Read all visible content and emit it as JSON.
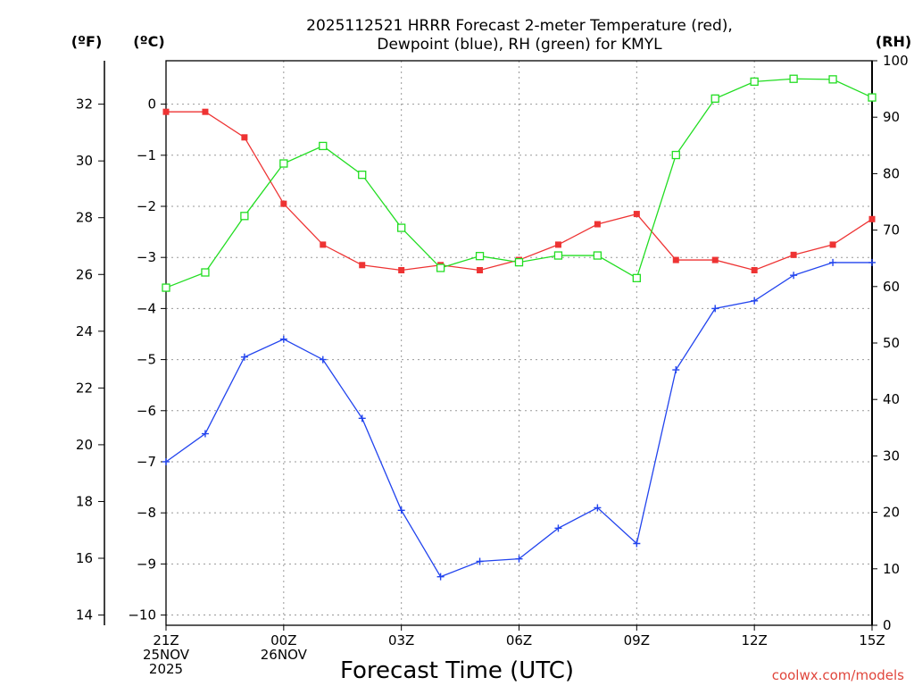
{
  "chart_data": {
    "type": "line",
    "title_lines": [
      "2025112521 HRRR Forecast 2-meter Temperature (red),",
      "Dewpoint (blue), RH (green) for KMYL"
    ],
    "xlabel": "Forecast Time (UTC)",
    "x": [
      0,
      1,
      2,
      3,
      4,
      5,
      6,
      7,
      8,
      9,
      10,
      11,
      12,
      13,
      14,
      15,
      16,
      17,
      18
    ],
    "xlim": [
      0,
      18
    ],
    "x_ticks": [
      {
        "x": 0,
        "lines": [
          "21Z",
          "25NOV",
          "2025"
        ]
      },
      {
        "x": 3,
        "lines": [
          "00Z",
          "26NOV"
        ]
      },
      {
        "x": 6,
        "lines": [
          "03Z"
        ]
      },
      {
        "x": 9,
        "lines": [
          "06Z"
        ]
      },
      {
        "x": 12,
        "lines": [
          "09Z"
        ]
      },
      {
        "x": 15,
        "lines": [
          "12Z"
        ]
      },
      {
        "x": 18,
        "lines": [
          "15Z"
        ]
      }
    ],
    "axes": {
      "fahrenheit": {
        "unit_label": "(ºF)",
        "ticks": [
          "14",
          "16",
          "18",
          "20",
          "22",
          "24",
          "26",
          "28",
          "30",
          "32"
        ]
      },
      "celsius": {
        "unit_label": "(ºC)",
        "ylim": [
          -10.2,
          0.85
        ],
        "ticks": [
          "−10",
          "−9",
          "−8",
          "−7",
          "−6",
          "−5",
          "−4",
          "−3",
          "−2",
          "−1",
          "0"
        ]
      },
      "rh": {
        "unit_label": "(RH)",
        "ylim": [
          0,
          100
        ],
        "ticks": [
          "0",
          "10",
          "20",
          "30",
          "40",
          "50",
          "60",
          "70",
          "80",
          "90",
          "100"
        ]
      }
    },
    "series": [
      {
        "name": "2-meter Temperature",
        "color": "#ee3333",
        "axis": "celsius",
        "marker": "filled-square",
        "values": [
          -0.15,
          -0.15,
          -0.65,
          -1.95,
          -2.75,
          -3.15,
          -3.25,
          -3.15,
          -3.25,
          -3.05,
          -2.75,
          -2.35,
          -2.15,
          -3.05,
          -3.05,
          -3.25,
          -2.95,
          -2.75,
          -2.25
        ]
      },
      {
        "name": "Dewpoint",
        "color": "#2244ee",
        "axis": "celsius",
        "marker": "plus",
        "values": [
          -7.0,
          -6.45,
          -4.95,
          -4.6,
          -5.0,
          -6.15,
          -7.95,
          -9.25,
          -8.95,
          -8.9,
          -8.3,
          -7.9,
          -8.6,
          -5.2,
          -4.0,
          -3.85,
          -3.35,
          -3.1,
          -3.1
        ]
      },
      {
        "name": "RH",
        "color": "#22dd22",
        "axis": "rh",
        "marker": "open-square",
        "values": [
          59.8,
          62.5,
          72.5,
          81.8,
          84.9,
          79.8,
          70.4,
          63.3,
          65.4,
          64.3,
          65.5,
          65.5,
          61.5,
          83.3,
          93.3,
          96.3,
          96.8,
          96.7,
          93.5
        ]
      }
    ]
  },
  "credit": "coolwx.com/models"
}
